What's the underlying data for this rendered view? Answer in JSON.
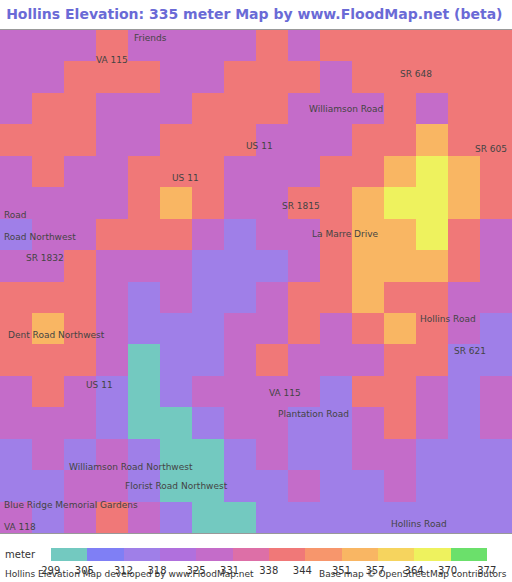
{
  "chart_data": {
    "type": "heatmap",
    "title": "Hollins Elevation: 335 meter Map by www.FloodMap.net (beta)",
    "cells": [
      [
        331,
        325,
        331,
        338,
        331,
        325,
        325,
        331,
        338,
        331,
        338,
        344,
        338,
        344,
        338,
        338
      ],
      [
        325,
        331,
        338,
        344,
        338,
        325,
        331,
        338,
        344,
        338,
        331,
        338,
        344,
        338,
        344,
        338
      ],
      [
        331,
        338,
        338,
        331,
        325,
        331,
        338,
        344,
        338,
        331,
        325,
        331,
        338,
        331,
        338,
        344
      ],
      [
        338,
        344,
        338,
        325,
        331,
        338,
        344,
        338,
        331,
        325,
        331,
        338,
        344,
        351,
        344,
        338
      ],
      [
        331,
        338,
        331,
        325,
        338,
        344,
        338,
        331,
        325,
        331,
        338,
        344,
        357,
        370,
        357,
        344
      ],
      [
        325,
        331,
        325,
        331,
        344,
        351,
        338,
        325,
        331,
        338,
        344,
        351,
        364,
        370,
        351,
        338
      ],
      [
        318,
        325,
        331,
        338,
        344,
        338,
        331,
        318,
        325,
        331,
        338,
        351,
        357,
        364,
        344,
        331
      ],
      [
        325,
        331,
        338,
        331,
        325,
        331,
        318,
        312,
        318,
        331,
        344,
        351,
        357,
        351,
        338,
        325
      ],
      [
        338,
        344,
        338,
        331,
        318,
        325,
        312,
        318,
        325,
        338,
        344,
        351,
        344,
        344,
        331,
        325
      ],
      [
        344,
        351,
        344,
        331,
        312,
        318,
        318,
        325,
        331,
        338,
        331,
        338,
        351,
        344,
        325,
        318
      ],
      [
        338,
        344,
        338,
        325,
        305,
        312,
        318,
        331,
        338,
        331,
        325,
        331,
        344,
        338,
        318,
        318
      ],
      [
        331,
        338,
        331,
        312,
        305,
        318,
        325,
        331,
        331,
        325,
        318,
        338,
        344,
        331,
        318,
        325
      ],
      [
        325,
        331,
        325,
        318,
        305,
        299,
        318,
        325,
        331,
        318,
        312,
        331,
        338,
        325,
        318,
        325
      ],
      [
        318,
        325,
        318,
        325,
        312,
        299,
        305,
        318,
        325,
        318,
        318,
        325,
        331,
        318,
        312,
        318
      ],
      [
        318,
        318,
        325,
        331,
        318,
        305,
        305,
        312,
        318,
        325,
        312,
        318,
        325,
        312,
        318,
        318
      ],
      [
        325,
        318,
        331,
        338,
        325,
        312,
        305,
        305,
        312,
        318,
        312,
        318,
        318,
        318,
        312,
        318
      ]
    ],
    "xlim": [
      -0.5,
      15.5
    ],
    "ylim": [
      15.5,
      -0.5
    ],
    "tick_labels": false,
    "colorbar": {
      "title": "meter",
      "range": [
        299,
        377
      ],
      "ticks": [
        299,
        305,
        312,
        318,
        325,
        331,
        338,
        344,
        351,
        357,
        364,
        370,
        377
      ],
      "colors": [
        "#73c9c0",
        "#7f7ff5",
        "#9f7fe8",
        "#b070dd",
        "#c46cc9",
        "#dd6fa7",
        "#f07878",
        "#f7966c",
        "#f9b663",
        "#f6d45e",
        "#eef25e",
        "#6be06b"
      ]
    },
    "labels": [
      {
        "text": "Friends",
        "x": 4.2,
        "y": -0.25
      },
      {
        "text": "VA 115",
        "x": 3.0,
        "y": 0.45
      },
      {
        "text": "SR 648",
        "x": 12.5,
        "y": 0.9
      },
      {
        "text": "Williamson Road",
        "x": 10.3,
        "y": 2.0
      },
      {
        "text": "US 11",
        "x": 7.6,
        "y": 3.2
      },
      {
        "text": "SR 605",
        "x": 15.4,
        "y": 3.3
      },
      {
        "text": "US 11",
        "x": 5.3,
        "y": 4.2
      },
      {
        "text": "SR 1815",
        "x": 8.9,
        "y": 5.1
      },
      {
        "text": "Road",
        "x": -0.45,
        "y": 5.4
      },
      {
        "text": "La Marre Drive",
        "x": 10.3,
        "y": 6.0
      },
      {
        "text": "Road Northwest",
        "x": -0.45,
        "y": 6.1
      },
      {
        "text": "SR 1832",
        "x": 0.9,
        "y": 6.75
      },
      {
        "text": "Hollins Road",
        "x": 13.5,
        "y": 8.7
      },
      {
        "text": "Dent Road Northwest",
        "x": -0.3,
        "y": 9.2
      },
      {
        "text": "SR 621",
        "x": 14.2,
        "y": 9.7
      },
      {
        "text": "US 11",
        "x": 2.6,
        "y": 10.8
      },
      {
        "text": "VA 115",
        "x": 8.4,
        "y": 11.05
      },
      {
        "text": "Plantation Road",
        "x": 9.3,
        "y": 11.7
      },
      {
        "text": "Williamson Road Northwest",
        "x": 3.6,
        "y": 13.4
      },
      {
        "text": "Florist Road Northwest",
        "x": 5.0,
        "y": 14.0
      },
      {
        "text": "Blue Ridge Memorial Gardens",
        "x": -0.45,
        "y": 14.6
      },
      {
        "text": "Hollins Road",
        "x": 12.6,
        "y": 15.2
      },
      {
        "text": "VA 118",
        "x": -0.45,
        "y": 15.3
      }
    ],
    "footnotes": [
      "Hollins Elevation Map developed by www.FloodMap.net",
      "Base map © OpenStreetMap contributors"
    ]
  }
}
